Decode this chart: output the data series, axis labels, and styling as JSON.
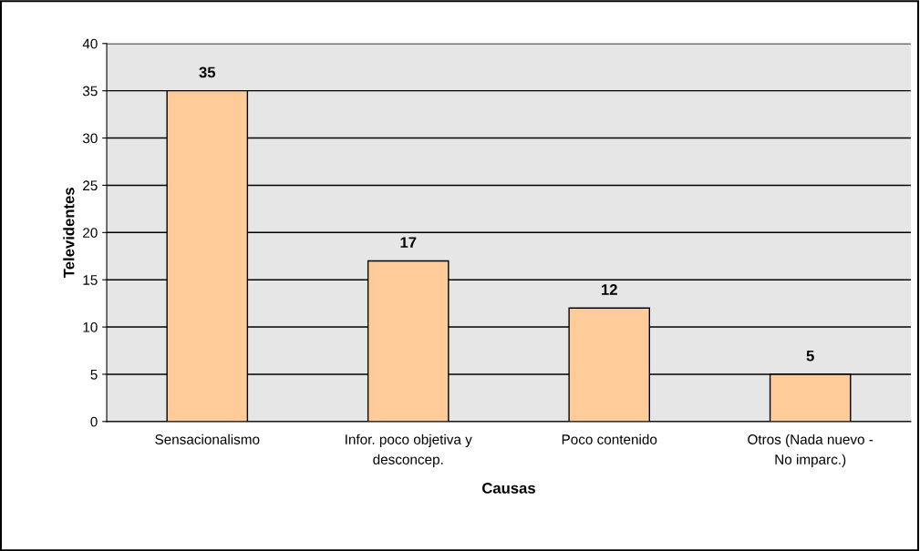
{
  "chart_data": {
    "type": "bar",
    "xlabel": "Causas",
    "ylabel": "Televidentes",
    "categories": [
      "Sensacionalismo",
      "Infor. poco objetiva y\ndesconcep.",
      "Poco contenido",
      "Otros (Nada nuevo -\nNo imparc.)"
    ],
    "values": [
      35,
      17,
      12,
      5
    ],
    "color": "#ffcc99",
    "ylim": [
      0,
      40
    ],
    "yticks": [
      0,
      5,
      10,
      15,
      20,
      25,
      30,
      35,
      40
    ],
    "grid": "y",
    "data_labels": true
  }
}
